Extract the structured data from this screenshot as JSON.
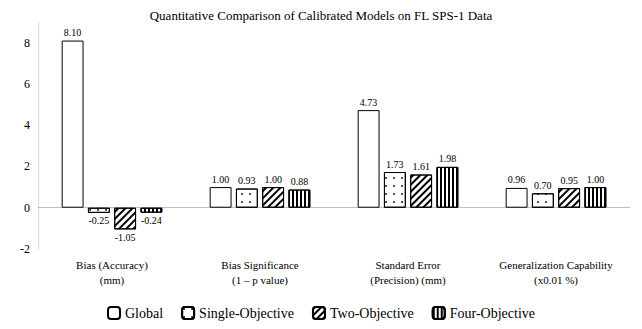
{
  "chart_data": {
    "type": "bar",
    "title": "Quantitative Comparison of Calibrated Models on FL SPS-1 Data",
    "categories": [
      "Bias (Accuracy)\n(mm)",
      "Bias Significance\n(1 – p value)",
      "Standard Error\n(Precision) (mm)",
      "Generalization Capability\n(x0.01 %)"
    ],
    "series": [
      {
        "name": "Global",
        "color": "#ffffff",
        "values": [
          8.1,
          1.0,
          4.73,
          0.96
        ],
        "value_labels": [
          "8.10",
          "1.00",
          "4.73",
          "0.96"
        ]
      },
      {
        "name": "Single-Objective",
        "color": "#ffffff",
        "values": [
          -0.25,
          0.93,
          1.73,
          0.7
        ],
        "value_labels": [
          "-0.25",
          "0.93",
          "1.73",
          "0.70"
        ]
      },
      {
        "name": "Two-Objective",
        "color": "#ffffff",
        "values": [
          -1.05,
          1.0,
          1.61,
          0.95
        ],
        "value_labels": [
          "-1.05",
          "1.00",
          "1.61",
          "0.95"
        ]
      },
      {
        "name": "Four-Objective",
        "color": "#ffffff",
        "values": [
          -0.24,
          0.88,
          1.98,
          1.0
        ],
        "value_labels": [
          "-0.24",
          "0.88",
          "1.98",
          "1.00"
        ]
      }
    ],
    "ylim": [
      -2,
      9
    ],
    "yticks": [
      -2,
      0,
      2,
      4,
      6,
      8
    ],
    "grid": false,
    "legend": "bottom",
    "data_labels": true
  }
}
